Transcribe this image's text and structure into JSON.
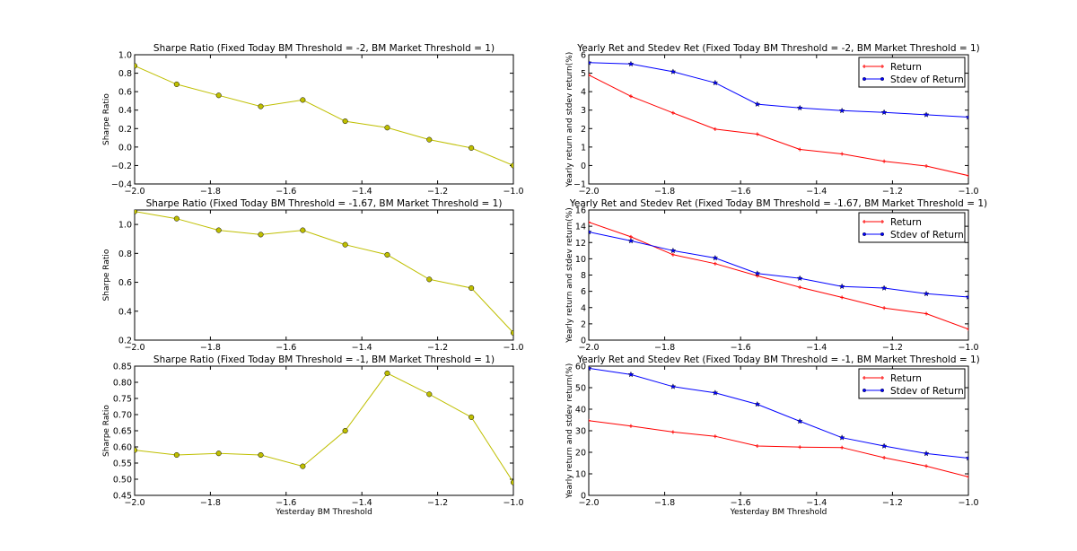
{
  "chart_data": [
    {
      "type": "line",
      "panel": "top-left",
      "title": "Sharpe Ratio (Fixed Today BM Threshold = -2, BM Market Threshold = 1)",
      "xlabel": "",
      "ylabel": "Sharpe Ratio",
      "xlim": [
        -2.0,
        -1.0
      ],
      "ylim": [
        -0.4,
        1.0
      ],
      "xticks": [
        "−2.0",
        "−1.8",
        "−1.6",
        "−1.4",
        "−1.2",
        "−1.0"
      ],
      "xtick_values": [
        -2.0,
        -1.8,
        -1.6,
        -1.4,
        -1.2,
        -1.0
      ],
      "yticks": [
        "−0.4",
        "−0.2",
        "0.0",
        "0.2",
        "0.4",
        "0.6",
        "0.8",
        "1.0"
      ],
      "ytick_values": [
        -0.4,
        -0.2,
        0.0,
        0.2,
        0.4,
        0.6,
        0.8,
        1.0
      ],
      "x": [
        -2.0,
        -1.889,
        -1.778,
        -1.667,
        -1.556,
        -1.444,
        -1.333,
        -1.222,
        -1.111,
        -1.0
      ],
      "series": [
        {
          "name": "Sharpe Ratio",
          "color": "#bfbf00",
          "marker": "circle",
          "values": [
            0.88,
            0.68,
            0.56,
            0.44,
            0.51,
            0.28,
            0.21,
            0.08,
            -0.01,
            -0.2
          ]
        }
      ],
      "legend": null
    },
    {
      "type": "line",
      "panel": "middle-left",
      "title": "Sharpe Ratio (Fixed Today BM Threshold = -1.67, BM Market Threshold = 1)",
      "xlabel": "",
      "ylabel": "Sharpe Ratio",
      "xlim": [
        -2.0,
        -1.0
      ],
      "ylim": [
        0.2,
        1.1
      ],
      "xticks": [
        "−2.0",
        "−1.8",
        "−1.6",
        "−1.4",
        "−1.2",
        "−1.0"
      ],
      "xtick_values": [
        -2.0,
        -1.8,
        -1.6,
        -1.4,
        -1.2,
        -1.0
      ],
      "yticks": [
        "0.2",
        "0.4",
        "0.6",
        "0.8",
        "1.0"
      ],
      "ytick_values": [
        0.2,
        0.4,
        0.6,
        0.8,
        1.0
      ],
      "x": [
        -2.0,
        -1.889,
        -1.778,
        -1.667,
        -1.556,
        -1.444,
        -1.333,
        -1.222,
        -1.111,
        -1.0
      ],
      "series": [
        {
          "name": "Sharpe Ratio",
          "color": "#bfbf00",
          "marker": "circle",
          "values": [
            1.09,
            1.04,
            0.96,
            0.93,
            0.96,
            0.86,
            0.79,
            0.62,
            0.56,
            0.25
          ]
        }
      ],
      "legend": null
    },
    {
      "type": "line",
      "panel": "bottom-left",
      "title": "Sharpe Ratio (Fixed Today BM Threshold = -1, BM Market Threshold = 1)",
      "xlabel": "Yesterday BM Threshold",
      "ylabel": "Sharpe Ratio",
      "xlim": [
        -2.0,
        -1.0
      ],
      "ylim": [
        0.45,
        0.85
      ],
      "xticks": [
        "−2.0",
        "−1.8",
        "−1.6",
        "−1.4",
        "−1.2",
        "−1.0"
      ],
      "xtick_values": [
        -2.0,
        -1.8,
        -1.6,
        -1.4,
        -1.2,
        -1.0
      ],
      "yticks": [
        "0.45",
        "0.50",
        "0.55",
        "0.60",
        "0.65",
        "0.70",
        "0.75",
        "0.80",
        "0.85"
      ],
      "ytick_values": [
        0.45,
        0.5,
        0.55,
        0.6,
        0.65,
        0.7,
        0.75,
        0.8,
        0.85
      ],
      "x": [
        -2.0,
        -1.889,
        -1.778,
        -1.667,
        -1.556,
        -1.444,
        -1.333,
        -1.222,
        -1.111,
        -1.0
      ],
      "series": [
        {
          "name": "Sharpe Ratio",
          "color": "#bfbf00",
          "marker": "circle",
          "values": [
            0.59,
            0.575,
            0.58,
            0.575,
            0.54,
            0.65,
            0.828,
            0.763,
            0.692,
            0.49
          ]
        }
      ],
      "legend": null
    },
    {
      "type": "line",
      "panel": "top-right",
      "title": "Yearly Ret and Stedev Ret (Fixed Today BM Threshold = -2, BM Market Threshold = 1)",
      "xlabel": "",
      "ylabel": "Yearly return and stdev return(%)",
      "xlim": [
        -2.0,
        -1.0
      ],
      "ylim": [
        -1,
        6
      ],
      "xticks": [
        "−2.0",
        "−1.8",
        "−1.6",
        "−1.4",
        "−1.2",
        "−1.0"
      ],
      "xtick_values": [
        -2.0,
        -1.8,
        -1.6,
        -1.4,
        -1.2,
        -1.0
      ],
      "yticks": [
        "−1",
        "0",
        "1",
        "2",
        "3",
        "4",
        "5",
        "6"
      ],
      "ytick_values": [
        -1,
        0,
        1,
        2,
        3,
        4,
        5,
        6
      ],
      "x": [
        -2.0,
        -1.889,
        -1.778,
        -1.667,
        -1.556,
        -1.444,
        -1.333,
        -1.222,
        -1.111,
        -1.0
      ],
      "series": [
        {
          "name": "Return",
          "color": "#ff0000",
          "marker": "plus",
          "values": [
            4.9,
            3.75,
            2.85,
            1.97,
            1.7,
            0.87,
            0.63,
            0.23,
            -0.03,
            -0.55
          ]
        },
        {
          "name": "Stdev of Return",
          "color": "#0000ff",
          "marker": "star",
          "values": [
            5.57,
            5.5,
            5.08,
            4.48,
            3.32,
            3.12,
            2.97,
            2.88,
            2.75,
            2.62
          ]
        }
      ],
      "legend": "top-right"
    },
    {
      "type": "line",
      "panel": "middle-right",
      "title": "Yearly Ret and Stedev Ret (Fixed Today BM Threshold = -1.67, BM Market Threshold = 1)",
      "xlabel": "",
      "ylabel": "Yearly return and stdev return(%)",
      "xlim": [
        -2.0,
        -1.0
      ],
      "ylim": [
        0,
        16
      ],
      "xticks": [
        "−2.0",
        "−1.8",
        "−1.6",
        "−1.4",
        "−1.2",
        "−1.0"
      ],
      "xtick_values": [
        -2.0,
        -1.8,
        -1.6,
        -1.4,
        -1.2,
        -1.0
      ],
      "yticks": [
        "0",
        "2",
        "4",
        "6",
        "8",
        "10",
        "12",
        "14",
        "16"
      ],
      "ytick_values": [
        0,
        2,
        4,
        6,
        8,
        10,
        12,
        14,
        16
      ],
      "x": [
        -2.0,
        -1.889,
        -1.778,
        -1.667,
        -1.556,
        -1.444,
        -1.333,
        -1.222,
        -1.111,
        -1.0
      ],
      "series": [
        {
          "name": "Return",
          "color": "#ff0000",
          "marker": "plus",
          "values": [
            14.5,
            12.7,
            10.5,
            9.4,
            7.9,
            6.5,
            5.25,
            3.95,
            3.25,
            1.35
          ]
        },
        {
          "name": "Stdev of Return",
          "color": "#0000ff",
          "marker": "star",
          "values": [
            13.3,
            12.2,
            11.0,
            10.1,
            8.2,
            7.6,
            6.6,
            6.4,
            5.7,
            5.3
          ]
        }
      ],
      "legend": "top-right"
    },
    {
      "type": "line",
      "panel": "bottom-right",
      "title": "Yearly Ret and Stedev Ret (Fixed Today BM Threshold = -1, BM Market Threshold = 1)",
      "xlabel": "Yesterday BM Threshold",
      "ylabel": "Yearly return and stdev return(%)",
      "xlim": [
        -2.0,
        -1.0
      ],
      "ylim": [
        0,
        60
      ],
      "xticks": [
        "−2.0",
        "−1.8",
        "−1.6",
        "−1.4",
        "−1.2",
        "−1.0"
      ],
      "xtick_values": [
        -2.0,
        -1.8,
        -1.6,
        -1.4,
        -1.2,
        -1.0
      ],
      "yticks": [
        "0",
        "10",
        "20",
        "30",
        "40",
        "50",
        "60"
      ],
      "ytick_values": [
        0,
        10,
        20,
        30,
        40,
        50,
        60
      ],
      "x": [
        -2.0,
        -1.889,
        -1.778,
        -1.667,
        -1.556,
        -1.444,
        -1.333,
        -1.222,
        -1.111,
        -1.0
      ],
      "series": [
        {
          "name": "Return",
          "color": "#ff0000",
          "marker": "plus",
          "values": [
            34.7,
            32.2,
            29.4,
            27.4,
            22.9,
            22.4,
            22.2,
            17.5,
            13.6,
            8.6
          ]
        },
        {
          "name": "Stdev of Return",
          "color": "#0000ff",
          "marker": "star",
          "values": [
            59.0,
            56.1,
            50.5,
            47.6,
            42.3,
            34.4,
            26.8,
            22.9,
            19.4,
            17.3
          ]
        }
      ],
      "legend": "top-right"
    }
  ]
}
